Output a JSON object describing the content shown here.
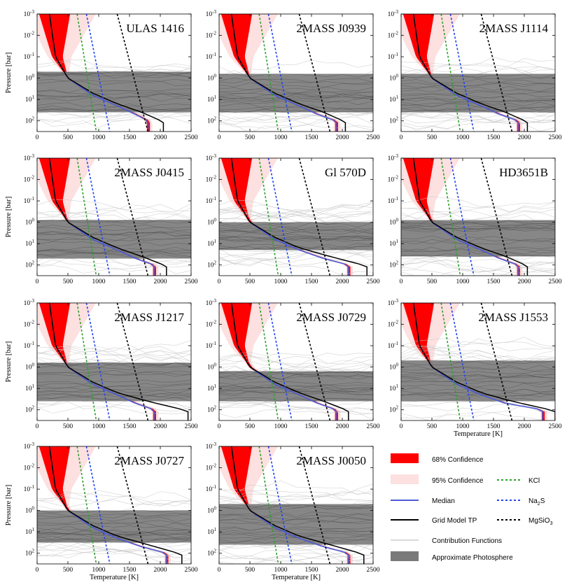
{
  "figure": {
    "panel_titles": [
      "ULAS 1416",
      "2MASS J0939",
      "2MASS J1114",
      "2MASS J0415",
      "Gl 570D",
      "HD3651B",
      "2MASS J1217",
      "2MASS J0729",
      "2MASS J1553",
      "2MASS J0727",
      "2MASS J0050"
    ],
    "x_axis_label": "Temperature [K]",
    "y_axis_label": "Pressure [bar]"
  },
  "colors": {
    "conf68": "#ff0000",
    "conf95": "#fde0e0",
    "median": "#4a5ad6",
    "grid": "#000000",
    "kcl": "#2ca02c",
    "na2s": "#2244ee",
    "mgsio3": "#000000",
    "contrib": "#c8c8c8",
    "photosphere": "#7a7a7a"
  },
  "legend": {
    "conf68": "68% Confidence",
    "conf95": "95% Confidence",
    "median": "Median",
    "grid_tp": "Grid Model TP",
    "contrib": "Contribution Functions",
    "photosphere": "Approximate Photosphere",
    "kcl": "KCl",
    "na2s_base": "Na",
    "na2s_sub": "2",
    "na2s_tail": "S",
    "mgsio3_base": "MgSiO",
    "mgsio3_sub": "3"
  },
  "chart_data": [
    {
      "type": "line",
      "title": "ULAS 1416",
      "xlabel": "",
      "ylabel": "Pressure [bar]",
      "xlim": [
        0,
        2500
      ],
      "ylim_log10": [
        -3,
        2.5
      ],
      "x_ticks": [
        0,
        500,
        1000,
        1500,
        2000,
        2500
      ],
      "y_tick_labels": [
        "10-3",
        "10-2",
        "10-1",
        "100",
        "101",
        "102"
      ],
      "photosphere_log10P": [
        -0.3,
        1.6
      ],
      "median_TP": [
        [
          200,
          -3
        ],
        [
          300,
          -1
        ],
        [
          500,
          0
        ],
        [
          900,
          0.8
        ],
        [
          1300,
          1.3
        ],
        [
          1600,
          1.7
        ],
        [
          1800,
          2.0
        ]
      ],
      "grid_TP": [
        [
          200,
          -3
        ],
        [
          300,
          -1
        ],
        [
          500,
          0
        ],
        [
          900,
          0.7
        ],
        [
          1300,
          1.2
        ],
        [
          1700,
          1.6
        ],
        [
          2050,
          2.05
        ]
      ],
      "conf68_width_top_K": 380
    },
    {
      "type": "line",
      "title": "2MASS J0939",
      "xlabel": "",
      "ylabel": "",
      "xlim": [
        0,
        2500
      ],
      "ylim_log10": [
        -3,
        2.5
      ],
      "x_ticks": [
        0,
        500,
        1000,
        1500,
        2000,
        2500
      ],
      "y_tick_labels": [
        "10-3",
        "10-2",
        "10-1",
        "100",
        "101",
        "102"
      ],
      "photosphere_log10P": [
        -0.2,
        1.6
      ],
      "median_TP": [
        [
          200,
          -3
        ],
        [
          300,
          -1
        ],
        [
          500,
          0
        ],
        [
          900,
          0.8
        ],
        [
          1300,
          1.3
        ],
        [
          1600,
          1.7
        ],
        [
          1900,
          2.0
        ]
      ],
      "grid_TP": [
        [
          200,
          -3
        ],
        [
          300,
          -1
        ],
        [
          500,
          0
        ],
        [
          900,
          0.7
        ],
        [
          1300,
          1.2
        ],
        [
          1700,
          1.6
        ],
        [
          2050,
          2.05
        ]
      ],
      "conf68_width_top_K": 380
    },
    {
      "type": "line",
      "title": "2MASS J1114",
      "xlabel": "",
      "ylabel": "",
      "xlim": [
        0,
        2500
      ],
      "ylim_log10": [
        -3,
        2.5
      ],
      "x_ticks": [
        0,
        500,
        1000,
        1500,
        2000,
        2500
      ],
      "y_tick_labels": [
        "10-3",
        "10-2",
        "10-1",
        "100",
        "101",
        "102"
      ],
      "photosphere_log10P": [
        -0.2,
        1.6
      ],
      "median_TP": [
        [
          200,
          -3
        ],
        [
          300,
          -1
        ],
        [
          500,
          0
        ],
        [
          900,
          0.8
        ],
        [
          1300,
          1.3
        ],
        [
          1600,
          1.7
        ],
        [
          1900,
          2.0
        ]
      ],
      "grid_TP": [
        [
          200,
          -3
        ],
        [
          300,
          -1
        ],
        [
          500,
          0
        ],
        [
          900,
          0.7
        ],
        [
          1300,
          1.2
        ],
        [
          1700,
          1.6
        ],
        [
          2050,
          2.05
        ]
      ],
      "conf68_width_top_K": 380
    },
    {
      "type": "line",
      "title": "2MASS J0415",
      "xlabel": "",
      "ylabel": "Pressure [bar]",
      "xlim": [
        0,
        2500
      ],
      "ylim_log10": [
        -3,
        2.5
      ],
      "x_ticks": [
        0,
        500,
        1000,
        1500,
        2000,
        2500
      ],
      "y_tick_labels": [
        "10-3",
        "10-2",
        "10-1",
        "100",
        "101",
        "102"
      ],
      "photosphere_log10P": [
        -0.1,
        1.7
      ],
      "median_TP": [
        [
          200,
          -3
        ],
        [
          300,
          -1
        ],
        [
          500,
          0
        ],
        [
          900,
          0.8
        ],
        [
          1300,
          1.3
        ],
        [
          1600,
          1.7
        ],
        [
          1900,
          2.0
        ]
      ],
      "grid_TP": [
        [
          200,
          -3
        ],
        [
          300,
          -1
        ],
        [
          500,
          0
        ],
        [
          900,
          0.7
        ],
        [
          1300,
          1.2
        ],
        [
          1700,
          1.6
        ],
        [
          2100,
          2.05
        ]
      ],
      "conf68_width_top_K": 380
    },
    {
      "type": "line",
      "title": "Gl 570D",
      "xlabel": "",
      "ylabel": "",
      "xlim": [
        0,
        2500
      ],
      "ylim_log10": [
        -3,
        2.5
      ],
      "x_ticks": [
        0,
        500,
        1000,
        1500,
        2000,
        2500
      ],
      "y_tick_labels": [
        "10-3",
        "10-2",
        "10-1",
        "100",
        "101",
        "102"
      ],
      "photosphere_log10P": [
        0.0,
        1.3
      ],
      "median_TP": [
        [
          200,
          -3
        ],
        [
          300,
          -1
        ],
        [
          500,
          0
        ],
        [
          900,
          0.8
        ],
        [
          1300,
          1.3
        ],
        [
          1700,
          1.7
        ],
        [
          2100,
          2.0
        ]
      ],
      "grid_TP": [
        [
          200,
          -3
        ],
        [
          300,
          -1
        ],
        [
          500,
          0
        ],
        [
          900,
          0.7
        ],
        [
          1300,
          1.2
        ],
        [
          1800,
          1.6
        ],
        [
          2400,
          2.05
        ]
      ],
      "conf68_width_top_K": 380
    },
    {
      "type": "line",
      "title": "HD3651B",
      "xlabel": "",
      "ylabel": "",
      "xlim": [
        0,
        2500
      ],
      "ylim_log10": [
        -3,
        2.5
      ],
      "x_ticks": [
        0,
        500,
        1000,
        1500,
        2000,
        2500
      ],
      "y_tick_labels": [
        "10-3",
        "10-2",
        "10-1",
        "100",
        "101",
        "102"
      ],
      "photosphere_log10P": [
        -0.1,
        1.6
      ],
      "median_TP": [
        [
          200,
          -3
        ],
        [
          300,
          -1
        ],
        [
          500,
          0
        ],
        [
          900,
          0.8
        ],
        [
          1300,
          1.3
        ],
        [
          1600,
          1.7
        ],
        [
          1900,
          2.0
        ]
      ],
      "grid_TP": [
        [
          200,
          -3
        ],
        [
          300,
          -1
        ],
        [
          500,
          0
        ],
        [
          900,
          0.7
        ],
        [
          1300,
          1.2
        ],
        [
          1700,
          1.6
        ],
        [
          2050,
          2.05
        ]
      ],
      "conf68_width_top_K": 380
    },
    {
      "type": "line",
      "title": "2MASS J1217",
      "xlabel": "",
      "ylabel": "Pressure [bar]",
      "xlim": [
        0,
        2500
      ],
      "ylim_log10": [
        -3,
        2.5
      ],
      "x_ticks": [
        0,
        500,
        1000,
        1500,
        2000,
        2500
      ],
      "y_tick_labels": [
        "10-3",
        "10-2",
        "10-1",
        "100",
        "101",
        "102"
      ],
      "photosphere_log10P": [
        -0.2,
        1.6
      ],
      "median_TP": [
        [
          200,
          -3
        ],
        [
          300,
          -1
        ],
        [
          500,
          0
        ],
        [
          900,
          0.8
        ],
        [
          1300,
          1.3
        ],
        [
          1600,
          1.7
        ],
        [
          1900,
          2.0
        ]
      ],
      "grid_TP": [
        [
          200,
          -3
        ],
        [
          300,
          -1
        ],
        [
          500,
          0
        ],
        [
          900,
          0.7
        ],
        [
          1300,
          1.2
        ],
        [
          1800,
          1.6
        ],
        [
          2450,
          2.05
        ]
      ],
      "conf68_width_top_K": 380
    },
    {
      "type": "line",
      "title": "2MASS J0729",
      "xlabel": "",
      "ylabel": "",
      "xlim": [
        0,
        2500
      ],
      "ylim_log10": [
        -3,
        2.5
      ],
      "x_ticks": [
        0,
        500,
        1000,
        1500,
        2000,
        2500
      ],
      "y_tick_labels": [
        "10-3",
        "10-2",
        "10-1",
        "100",
        "101",
        "102"
      ],
      "photosphere_log10P": [
        0.2,
        1.6
      ],
      "median_TP": [
        [
          200,
          -3
        ],
        [
          300,
          -1
        ],
        [
          500,
          0
        ],
        [
          900,
          0.8
        ],
        [
          1300,
          1.3
        ],
        [
          1600,
          1.7
        ],
        [
          1900,
          2.0
        ]
      ],
      "grid_TP": [
        [
          200,
          -3
        ],
        [
          300,
          -1
        ],
        [
          500,
          0
        ],
        [
          900,
          0.7
        ],
        [
          1300,
          1.2
        ],
        [
          1700,
          1.6
        ],
        [
          2100,
          2.05
        ]
      ],
      "conf68_width_top_K": 380
    },
    {
      "type": "line",
      "title": "2MASS J1553",
      "xlabel": "Temperature [K]",
      "ylabel": "",
      "xlim": [
        0,
        2500
      ],
      "ylim_log10": [
        -3,
        2.5
      ],
      "x_ticks": [
        0,
        500,
        1000,
        1500,
        2000,
        2500
      ],
      "y_tick_labels": [
        "10-3",
        "10-2",
        "10-1",
        "100",
        "101",
        "102"
      ],
      "photosphere_log10P": [
        -0.3,
        1.6
      ],
      "median_TP": [
        [
          200,
          -3
        ],
        [
          300,
          -1
        ],
        [
          500,
          0
        ],
        [
          900,
          0.8
        ],
        [
          1300,
          1.3
        ],
        [
          1700,
          1.7
        ],
        [
          2300,
          2.0
        ]
      ],
      "grid_TP": [
        [
          200,
          -3
        ],
        [
          300,
          -1
        ],
        [
          500,
          0
        ],
        [
          900,
          0.7
        ],
        [
          1300,
          1.2
        ],
        [
          1800,
          1.6
        ],
        [
          2500,
          2.05
        ]
      ],
      "conf68_width_top_K": 380
    },
    {
      "type": "line",
      "title": "2MASS J0727",
      "xlabel": "Temperature [K]",
      "ylabel": "Pressure [bar]",
      "xlim": [
        0,
        2500
      ],
      "ylim_log10": [
        -3,
        2.5
      ],
      "x_ticks": [
        0,
        500,
        1000,
        1500,
        2000,
        2500
      ],
      "y_tick_labels": [
        "10-3",
        "10-2",
        "10-1",
        "100",
        "101",
        "102"
      ],
      "photosphere_log10P": [
        0.0,
        1.5
      ],
      "median_TP": [
        [
          200,
          -3
        ],
        [
          300,
          -1
        ],
        [
          500,
          0
        ],
        [
          900,
          0.8
        ],
        [
          1300,
          1.3
        ],
        [
          1700,
          1.7
        ],
        [
          2100,
          2.0
        ]
      ],
      "grid_TP": [
        [
          200,
          -3
        ],
        [
          300,
          -1
        ],
        [
          500,
          0
        ],
        [
          900,
          0.7
        ],
        [
          1300,
          1.2
        ],
        [
          1800,
          1.6
        ],
        [
          2350,
          2.05
        ]
      ],
      "conf68_width_top_K": 380
    },
    {
      "type": "line",
      "title": "2MASS J0050",
      "xlabel": "Temperature [K]",
      "ylabel": "",
      "xlim": [
        0,
        2500
      ],
      "ylim_log10": [
        -3,
        2.5
      ],
      "x_ticks": [
        0,
        500,
        1000,
        1500,
        2000,
        2500
      ],
      "y_tick_labels": [
        "10-3",
        "10-2",
        "10-1",
        "100",
        "101",
        "102"
      ],
      "photosphere_log10P": [
        -0.3,
        1.6
      ],
      "median_TP": [
        [
          200,
          -3
        ],
        [
          300,
          -1
        ],
        [
          500,
          0
        ],
        [
          900,
          0.8
        ],
        [
          1300,
          1.3
        ],
        [
          1700,
          1.7
        ],
        [
          2100,
          2.0
        ]
      ],
      "grid_TP": [
        [
          200,
          -3
        ],
        [
          300,
          -1
        ],
        [
          500,
          0
        ],
        [
          900,
          0.7
        ],
        [
          1300,
          1.2
        ],
        [
          1800,
          1.6
        ],
        [
          2350,
          2.05
        ]
      ],
      "conf68_width_top_K": 380
    }
  ],
  "condensation_curves": {
    "KCl": [
      [
        650,
        -3
      ],
      [
        960,
        2.5
      ]
    ],
    "Na2S": [
      [
        800,
        -3
      ],
      [
        1180,
        2.5
      ]
    ],
    "MgSiO3": [
      [
        1300,
        -3
      ],
      [
        1800,
        2.5
      ]
    ]
  }
}
